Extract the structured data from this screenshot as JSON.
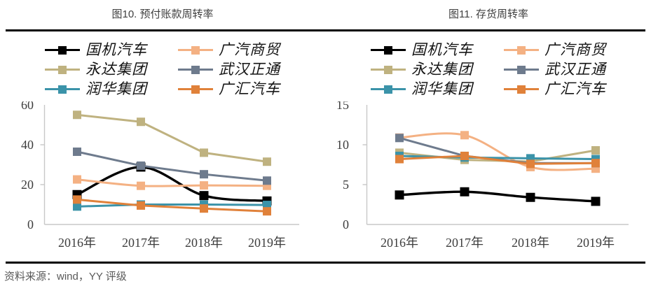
{
  "page": {
    "footer": "资料来源：wind，YY 评级"
  },
  "chart_data": [
    {
      "type": "line",
      "title": "图10. 预付账款周转率",
      "categories": [
        "2016年",
        "2017年",
        "2018年",
        "2019年"
      ],
      "xlabel": "",
      "ylabel": "",
      "ylim": [
        0,
        60
      ],
      "y_ticks": [
        0,
        20,
        40,
        60
      ],
      "grid": false,
      "legend_position": "top",
      "series": [
        {
          "name": "国机汽车",
          "color": "#000000",
          "smooth": true,
          "values": [
            15,
            28.8,
            14.5,
            11.8
          ]
        },
        {
          "name": "广汽商贸",
          "color": "#F4B183",
          "smooth": true,
          "values": [
            22.6,
            19.4,
            19.6,
            19.4
          ]
        },
        {
          "name": "永达集团",
          "color": "#BFB280",
          "smooth": false,
          "values": [
            55,
            51.5,
            36,
            31.5
          ]
        },
        {
          "name": "武汉正通",
          "color": "#6E7B8D",
          "smooth": false,
          "values": [
            36.5,
            29.5,
            25.2,
            22
          ]
        },
        {
          "name": "润华集团",
          "color": "#3B93A9",
          "smooth": false,
          "values": [
            9,
            10,
            10,
            9.8
          ]
        },
        {
          "name": "广汇汽车",
          "color": "#E0813A",
          "smooth": false,
          "values": [
            12.5,
            9.5,
            8,
            6.6
          ]
        }
      ]
    },
    {
      "type": "line",
      "title": "图11. 存货周转率",
      "categories": [
        "2016年",
        "2017年",
        "2018年",
        "2019年"
      ],
      "xlabel": "",
      "ylabel": "",
      "ylim": [
        0,
        15
      ],
      "y_ticks": [
        0,
        5,
        10,
        15
      ],
      "grid": false,
      "legend_position": "top",
      "series": [
        {
          "name": "国机汽车",
          "color": "#000000",
          "smooth": true,
          "values": [
            3.7,
            4.1,
            3.4,
            2.9
          ]
        },
        {
          "name": "广汽商贸",
          "color": "#F4B183",
          "smooth": true,
          "values": [
            10.9,
            11.2,
            7.2,
            7.0
          ]
        },
        {
          "name": "永达集团",
          "color": "#BFB280",
          "smooth": false,
          "values": [
            9.0,
            8.1,
            7.9,
            9.3
          ]
        },
        {
          "name": "武汉正通",
          "color": "#6E7B8D",
          "smooth": false,
          "values": [
            10.85,
            8.6,
            7.7,
            7.7
          ]
        },
        {
          "name": "润华集团",
          "color": "#3B93A9",
          "smooth": false,
          "values": [
            8.6,
            8.4,
            8.3,
            8.2
          ]
        },
        {
          "name": "广汇汽车",
          "color": "#E0813A",
          "smooth": false,
          "values": [
            8.2,
            8.6,
            7.6,
            7.7
          ]
        }
      ]
    }
  ]
}
